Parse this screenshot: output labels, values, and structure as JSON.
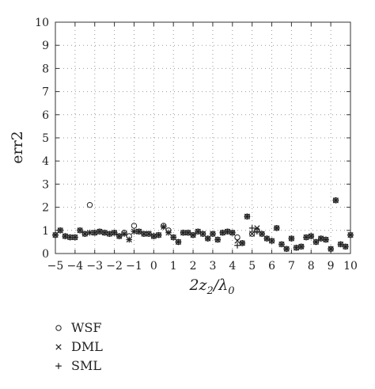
{
  "chart_data": {
    "type": "scatter",
    "ylabel": "err2",
    "xlabel_base": "2z",
    "xlabel_sub1": "2",
    "xlabel_mid": "/λ",
    "xlabel_sub2": "0",
    "xlim": [
      -5,
      10
    ],
    "ylim": [
      0,
      10
    ],
    "grid": "dotted",
    "legend_position": "bottom-left",
    "x_ticks": [
      -5,
      -4,
      -3,
      -2,
      -1,
      0,
      1,
      2,
      3,
      4,
      5,
      6,
      7,
      8,
      9,
      10
    ],
    "x_tick_labels": [
      "−5",
      "−4",
      "−3",
      "−2",
      "−1",
      "0",
      "1",
      "2",
      "3",
      "4",
      "5",
      "6",
      "7",
      "8",
      "9",
      "10"
    ],
    "y_ticks": [
      0,
      1,
      2,
      3,
      4,
      5,
      6,
      7,
      8,
      9,
      10
    ],
    "y_tick_labels": [
      "0",
      "1",
      "2",
      "3",
      "4",
      "5",
      "6",
      "7",
      "8",
      "9",
      "10"
    ],
    "series": [
      {
        "name": "WSF",
        "marker": "circle",
        "points": [
          [
            -5.0,
            0.8
          ],
          [
            -4.75,
            1.0
          ],
          [
            -4.5,
            0.75
          ],
          [
            -4.25,
            0.7
          ],
          [
            -4.0,
            0.7
          ],
          [
            -3.75,
            1.0
          ],
          [
            -3.5,
            0.85
          ],
          [
            -3.25,
            2.1
          ],
          [
            -3.0,
            0.9
          ],
          [
            -2.75,
            0.95
          ],
          [
            -2.5,
            0.9
          ],
          [
            -2.25,
            0.85
          ],
          [
            -2.0,
            0.9
          ],
          [
            -1.75,
            0.75
          ],
          [
            -1.5,
            0.9
          ],
          [
            -1.25,
            0.75
          ],
          [
            -1.0,
            1.2
          ],
          [
            -0.75,
            0.95
          ],
          [
            -0.5,
            0.85
          ],
          [
            -0.25,
            0.85
          ],
          [
            0.0,
            0.75
          ],
          [
            0.25,
            0.8
          ],
          [
            0.5,
            1.2
          ],
          [
            0.75,
            1.0
          ],
          [
            1.0,
            0.7
          ],
          [
            1.25,
            0.5
          ],
          [
            1.5,
            0.9
          ],
          [
            1.75,
            0.9
          ],
          [
            2.0,
            0.8
          ],
          [
            2.25,
            0.95
          ],
          [
            2.5,
            0.85
          ],
          [
            2.75,
            0.65
          ],
          [
            3.0,
            0.85
          ],
          [
            3.25,
            0.6
          ],
          [
            3.5,
            0.9
          ],
          [
            3.75,
            0.95
          ],
          [
            4.0,
            0.9
          ],
          [
            4.25,
            0.7
          ],
          [
            4.5,
            0.45
          ],
          [
            4.75,
            1.6
          ],
          [
            5.0,
            0.85
          ],
          [
            5.25,
            1.0
          ],
          [
            5.5,
            0.85
          ],
          [
            5.75,
            0.65
          ],
          [
            6.0,
            0.55
          ],
          [
            6.25,
            1.1
          ],
          [
            6.5,
            0.4
          ],
          [
            6.75,
            0.2
          ],
          [
            7.0,
            0.65
          ],
          [
            7.25,
            0.25
          ],
          [
            7.5,
            0.3
          ],
          [
            7.75,
            0.7
          ],
          [
            8.0,
            0.75
          ],
          [
            8.25,
            0.5
          ],
          [
            8.5,
            0.65
          ],
          [
            8.75,
            0.6
          ],
          [
            9.0,
            0.2
          ],
          [
            9.25,
            2.3
          ],
          [
            9.5,
            0.4
          ],
          [
            9.75,
            0.3
          ],
          [
            10.0,
            0.8
          ]
        ]
      },
      {
        "name": "DML",
        "marker": "cross",
        "points": [
          [
            -5.0,
            0.8
          ],
          [
            -4.75,
            1.0
          ],
          [
            -4.5,
            0.75
          ],
          [
            -4.25,
            0.7
          ],
          [
            -4.0,
            0.7
          ],
          [
            -3.75,
            1.0
          ],
          [
            -3.5,
            0.85
          ],
          [
            -3.25,
            0.9
          ],
          [
            -3.0,
            0.9
          ],
          [
            -2.75,
            0.95
          ],
          [
            -2.5,
            0.9
          ],
          [
            -2.25,
            0.85
          ],
          [
            -2.0,
            0.9
          ],
          [
            -1.75,
            0.75
          ],
          [
            -1.5,
            0.85
          ],
          [
            -1.25,
            0.6
          ],
          [
            -1.0,
            0.95
          ],
          [
            -0.75,
            0.95
          ],
          [
            -0.5,
            0.85
          ],
          [
            -0.25,
            0.85
          ],
          [
            0.0,
            0.75
          ],
          [
            0.25,
            0.8
          ],
          [
            0.5,
            1.15
          ],
          [
            0.75,
            0.9
          ],
          [
            1.0,
            0.7
          ],
          [
            1.25,
            0.5
          ],
          [
            1.5,
            0.9
          ],
          [
            1.75,
            0.9
          ],
          [
            2.0,
            0.8
          ],
          [
            2.25,
            0.95
          ],
          [
            2.5,
            0.85
          ],
          [
            2.75,
            0.65
          ],
          [
            3.0,
            0.85
          ],
          [
            3.25,
            0.6
          ],
          [
            3.5,
            0.9
          ],
          [
            3.75,
            0.95
          ],
          [
            4.0,
            0.9
          ],
          [
            4.25,
            0.55
          ],
          [
            4.5,
            0.45
          ],
          [
            4.75,
            1.6
          ],
          [
            5.0,
            0.85
          ],
          [
            5.25,
            1.1
          ],
          [
            5.5,
            0.85
          ],
          [
            5.75,
            0.65
          ],
          [
            6.0,
            0.55
          ],
          [
            6.25,
            1.1
          ],
          [
            6.5,
            0.4
          ],
          [
            6.75,
            0.2
          ],
          [
            7.0,
            0.65
          ],
          [
            7.25,
            0.25
          ],
          [
            7.5,
            0.3
          ],
          [
            7.75,
            0.7
          ],
          [
            8.0,
            0.75
          ],
          [
            8.25,
            0.5
          ],
          [
            8.5,
            0.65
          ],
          [
            8.75,
            0.6
          ],
          [
            9.0,
            0.2
          ],
          [
            9.25,
            2.3
          ],
          [
            9.5,
            0.4
          ],
          [
            9.75,
            0.3
          ],
          [
            10.0,
            0.8
          ]
        ]
      },
      {
        "name": "SML",
        "marker": "plus",
        "points": [
          [
            -5.0,
            0.8
          ],
          [
            -4.75,
            1.0
          ],
          [
            -4.5,
            0.75
          ],
          [
            -4.25,
            0.7
          ],
          [
            -4.0,
            0.7
          ],
          [
            -3.75,
            1.0
          ],
          [
            -3.5,
            0.85
          ],
          [
            -3.25,
            0.9
          ],
          [
            -3.0,
            0.9
          ],
          [
            -2.75,
            0.95
          ],
          [
            -2.5,
            0.9
          ],
          [
            -2.25,
            0.85
          ],
          [
            -2.0,
            0.9
          ],
          [
            -1.75,
            0.75
          ],
          [
            -1.5,
            0.85
          ],
          [
            -1.25,
            0.6
          ],
          [
            -1.0,
            0.95
          ],
          [
            -0.75,
            0.95
          ],
          [
            -0.5,
            0.85
          ],
          [
            -0.25,
            0.85
          ],
          [
            0.0,
            0.75
          ],
          [
            0.25,
            0.8
          ],
          [
            0.5,
            1.15
          ],
          [
            0.75,
            0.9
          ],
          [
            1.0,
            0.7
          ],
          [
            1.25,
            0.5
          ],
          [
            1.5,
            0.9
          ],
          [
            1.75,
            0.9
          ],
          [
            2.0,
            0.8
          ],
          [
            2.25,
            0.95
          ],
          [
            2.5,
            0.85
          ],
          [
            2.75,
            0.65
          ],
          [
            3.0,
            0.85
          ],
          [
            3.25,
            0.6
          ],
          [
            3.5,
            0.9
          ],
          [
            3.75,
            0.95
          ],
          [
            4.0,
            0.9
          ],
          [
            4.25,
            0.35
          ],
          [
            4.5,
            0.45
          ],
          [
            4.75,
            1.6
          ],
          [
            5.0,
            1.1
          ],
          [
            5.25,
            0.95
          ],
          [
            5.5,
            0.85
          ],
          [
            5.75,
            0.65
          ],
          [
            6.0,
            0.55
          ],
          [
            6.25,
            1.1
          ],
          [
            6.5,
            0.4
          ],
          [
            6.75,
            0.2
          ],
          [
            7.0,
            0.65
          ],
          [
            7.25,
            0.25
          ],
          [
            7.5,
            0.3
          ],
          [
            7.75,
            0.7
          ],
          [
            8.0,
            0.75
          ],
          [
            8.25,
            0.5
          ],
          [
            8.5,
            0.65
          ],
          [
            8.75,
            0.6
          ],
          [
            9.0,
            0.2
          ],
          [
            9.25,
            2.3
          ],
          [
            9.5,
            0.4
          ],
          [
            9.75,
            0.3
          ],
          [
            10.0,
            0.8
          ]
        ]
      }
    ]
  }
}
